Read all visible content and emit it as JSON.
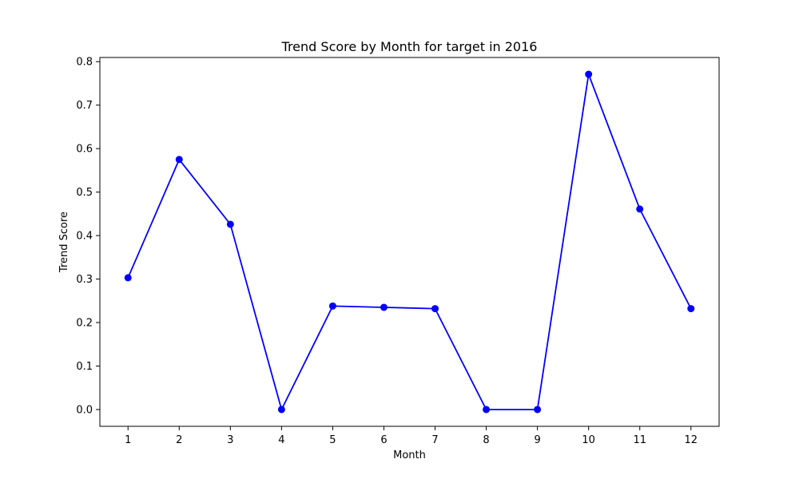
{
  "chart_data": {
    "type": "line",
    "title": "Trend Score by Month for target in 2016",
    "xlabel": "Month",
    "ylabel": "Trend Score",
    "x": [
      1,
      2,
      3,
      4,
      5,
      6,
      7,
      8,
      9,
      10,
      11,
      12
    ],
    "series": [
      {
        "values": [
          0.303,
          0.575,
          0.426,
          0.0,
          0.238,
          0.235,
          0.232,
          0.0,
          0.0,
          0.771,
          0.461,
          0.232
        ],
        "color": "#0000ff",
        "marker": "circle"
      }
    ],
    "xlim": [
      0.45,
      12.55
    ],
    "ylim": [
      -0.0386,
      0.8096
    ],
    "x_ticks": [
      "1",
      "2",
      "3",
      "4",
      "5",
      "6",
      "7",
      "8",
      "9",
      "10",
      "11",
      "12"
    ],
    "y_ticks": [
      "0.0",
      "0.1",
      "0.2",
      "0.3",
      "0.4",
      "0.5",
      "0.6",
      "0.7",
      "0.8"
    ],
    "grid": false,
    "legend": "none"
  }
}
